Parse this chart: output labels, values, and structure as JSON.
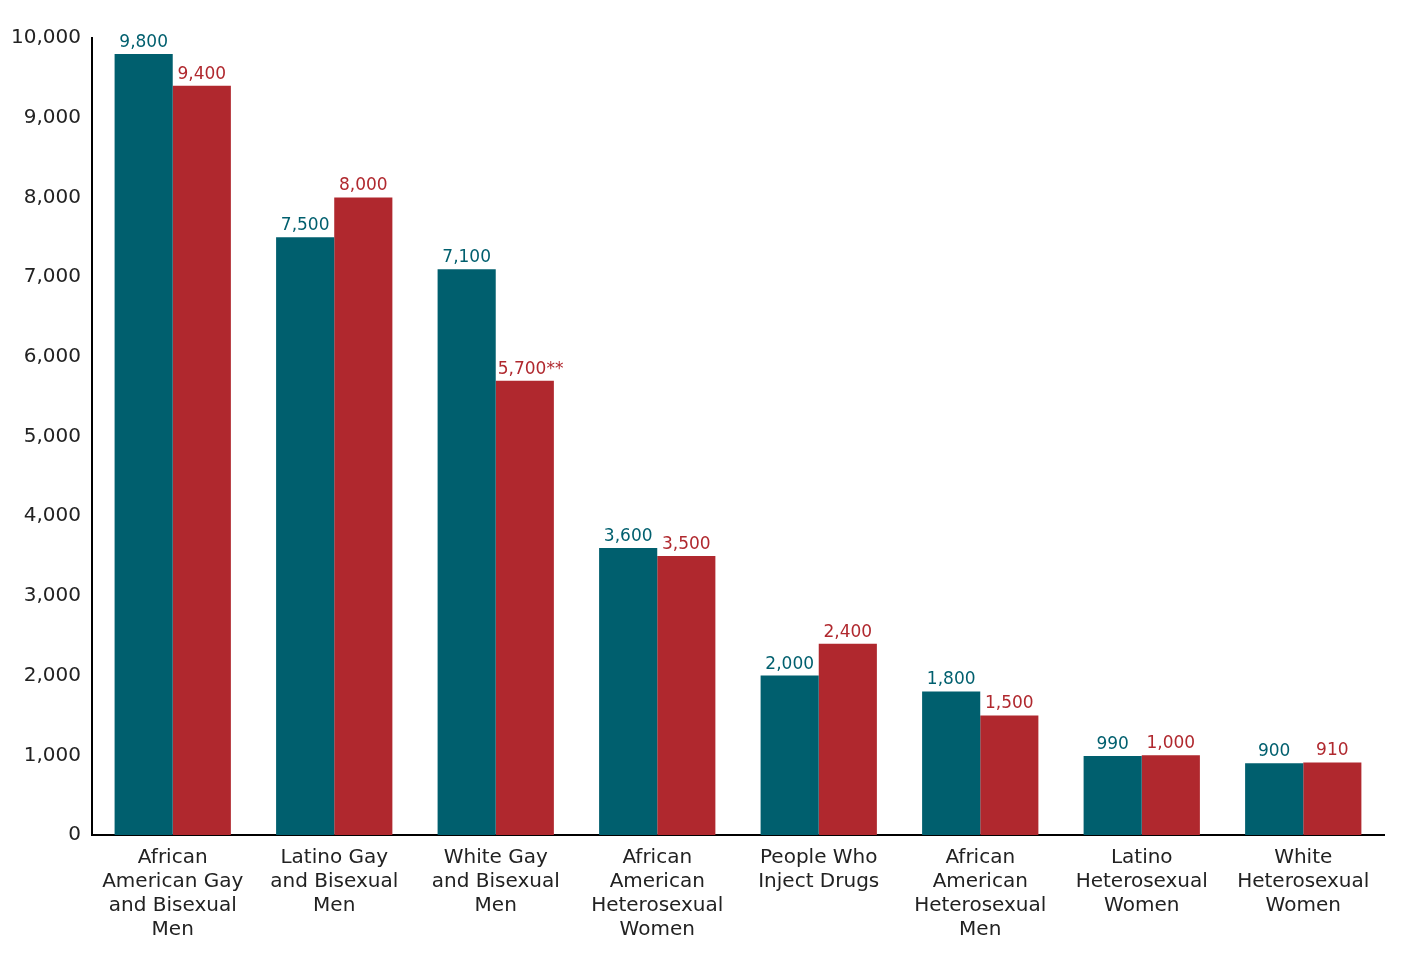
{
  "chart_data": {
    "type": "bar",
    "categories": [
      "African American Gay and Bisexual Men",
      "Latino Gay and Bisexual Men",
      "White Gay and Bisexual Men",
      "African American Heterosexual Women",
      "People Who Inject Drugs",
      "African American Heterosexual Men",
      "Latino Heterosexual Women",
      "White Heterosexual Women"
    ],
    "series": [
      {
        "color": "#005f6e",
        "values": [
          9800,
          7500,
          7100,
          3600,
          2000,
          1800,
          990,
          900
        ],
        "value_labels": [
          "9,800",
          "7,500",
          "7,100",
          "3,600",
          "2,000",
          "1,800",
          "990",
          "900"
        ]
      },
      {
        "color": "#b0282e",
        "values": [
          9400,
          8000,
          5700,
          3500,
          2400,
          1500,
          1000,
          910
        ],
        "value_labels": [
          "9,400",
          "8,000",
          "5,700**",
          "3,500",
          "2,400",
          "1,500",
          "1,000",
          "910"
        ]
      }
    ],
    "ylim": [
      0,
      10000
    ],
    "yticks": [
      {
        "value": 0,
        "label": "0"
      },
      {
        "value": 1000,
        "label": "1,000"
      },
      {
        "value": 2000,
        "label": "2,000"
      },
      {
        "value": 3000,
        "label": "3,000"
      },
      {
        "value": 4000,
        "label": "4,000"
      },
      {
        "value": 5000,
        "label": "5,000"
      },
      {
        "value": 6000,
        "label": "6,000"
      },
      {
        "value": 7000,
        "label": "7,000"
      },
      {
        "value": 8000,
        "label": "8,000"
      },
      {
        "value": 9000,
        "label": "9,000"
      },
      {
        "value": 10000,
        "label": "10,000"
      }
    ],
    "grid": false,
    "legend": false
  }
}
